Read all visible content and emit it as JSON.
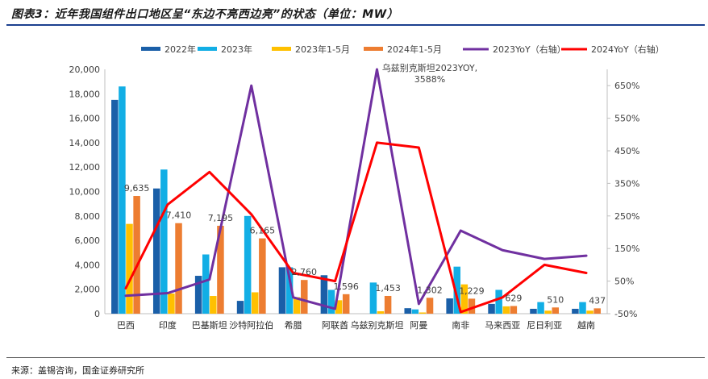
{
  "title": "图表3：近年我国组件出口地区呈“东边不亮西边亮”的状态（单位：MW）",
  "source": "来源：盖锡咨询，国金证券研究所",
  "chart_data": {
    "type": "bar",
    "categories": [
      "巴西",
      "印度",
      "巴基斯坦",
      "沙特阿拉伯",
      "希腊",
      "阿联酋",
      "乌兹别克斯坦",
      "阿曼",
      "南非",
      "马来西亚",
      "尼日利亚",
      "越南"
    ],
    "series": [
      {
        "name": "2022年",
        "type": "bar",
        "axis": "left",
        "color": "#1a5fa8",
        "values": [
          17500,
          10250,
          3100,
          1050,
          3800,
          3150,
          0,
          450,
          1250,
          800,
          400,
          400
        ]
      },
      {
        "name": "2023年",
        "type": "bar",
        "axis": "left",
        "color": "#12aee5",
        "values": [
          18600,
          11800,
          4850,
          8000,
          3800,
          1950,
          2550,
          350,
          3850,
          1950,
          950,
          950
        ]
      },
      {
        "name": "2023年1-5月",
        "type": "bar",
        "axis": "left",
        "color": "#ffc000",
        "values": [
          7350,
          1650,
          1450,
          1750,
          1350,
          1100,
          200,
          100,
          2400,
          600,
          250,
          250
        ]
      },
      {
        "name": "2024年1-5月",
        "type": "bar",
        "axis": "left",
        "color": "#ed7d31",
        "values": [
          9635,
          7410,
          7195,
          6165,
          2760,
          1596,
          1453,
          1302,
          1229,
          629,
          510,
          437
        ]
      },
      {
        "name": "2023YoY（右轴）",
        "type": "line",
        "axis": "right",
        "color": "#7030a0",
        "values": [
          5,
          13,
          55,
          650,
          0,
          -35,
          700,
          -20,
          205,
          145,
          118,
          128
        ]
      },
      {
        "name": "2024YoY（右轴）",
        "type": "line",
        "axis": "right",
        "color": "#ff0000",
        "values": [
          28,
          285,
          385,
          255,
          75,
          50,
          475,
          460,
          -45,
          0,
          100,
          75
        ]
      }
    ],
    "data_labels": {
      "series": "2024年1-5月",
      "values": [
        "9,635",
        "7,410",
        "7,195",
        "6,165",
        "2,760",
        "1,596",
        "1,453",
        "1,302",
        "1,229",
        "629",
        "510",
        "437"
      ]
    },
    "annotation": {
      "lines": [
        "乌兹别克斯坦2023YOY,",
        "3588%"
      ]
    },
    "y_left": {
      "min": 0,
      "max": 20000,
      "step": 2000,
      "ticks": [
        "0",
        "2,000",
        "4,000",
        "6,000",
        "8,000",
        "10,000",
        "12,000",
        "14,000",
        "16,000",
        "18,000",
        "20,000"
      ]
    },
    "y_right": {
      "min": -50,
      "max": 700,
      "step": 100,
      "ticks": [
        "-50%",
        "50%",
        "150%",
        "250%",
        "350%",
        "450%",
        "550%",
        "650%"
      ]
    },
    "legend_position": "top",
    "grid": false
  }
}
